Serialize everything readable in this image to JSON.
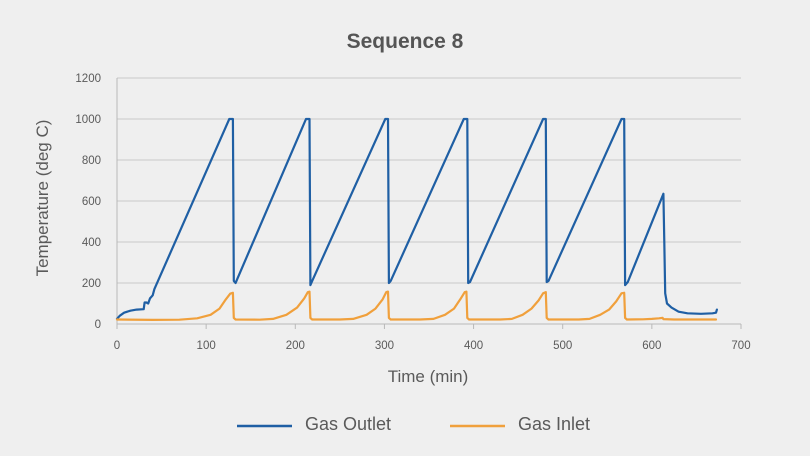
{
  "chart_data": {
    "type": "line",
    "title": "Sequence 8",
    "xlabel": "Time (min)",
    "ylabel": "Temperature (deg C)",
    "xlim": [
      0,
      700
    ],
    "ylim": [
      0,
      1200
    ],
    "xticks": [
      "0",
      "100",
      "200",
      "300",
      "400",
      "500",
      "600",
      "700"
    ],
    "yticks": [
      "0",
      "200",
      "400",
      "600",
      "800",
      "1000",
      "1200"
    ],
    "grid": "horizontal",
    "legend_position": "bottom",
    "series": [
      {
        "name": "Gas Outlet",
        "color": "#1f5fa4",
        "points": [
          [
            0,
            25
          ],
          [
            3,
            40
          ],
          [
            8,
            55
          ],
          [
            15,
            65
          ],
          [
            22,
            70
          ],
          [
            30,
            72
          ],
          [
            31,
            105
          ],
          [
            33,
            105
          ],
          [
            35,
            100
          ],
          [
            37,
            125
          ],
          [
            40,
            140
          ],
          [
            42,
            170
          ],
          [
            126,
            1000
          ],
          [
            128,
            1000
          ],
          [
            130,
            1000
          ],
          [
            131,
            210
          ],
          [
            133,
            200
          ],
          [
            135,
            220
          ],
          [
            212,
            1000
          ],
          [
            216,
            1000
          ],
          [
            217,
            190
          ],
          [
            219,
            210
          ],
          [
            301,
            1000
          ],
          [
            304,
            1000
          ],
          [
            305,
            200
          ],
          [
            307,
            210
          ],
          [
            389,
            1000
          ],
          [
            393,
            1000
          ],
          [
            394,
            200
          ],
          [
            396,
            205
          ],
          [
            478,
            1000
          ],
          [
            481,
            1000
          ],
          [
            482,
            205
          ],
          [
            484,
            210
          ],
          [
            566,
            1000
          ],
          [
            569,
            1000
          ],
          [
            570,
            190
          ],
          [
            573,
            205
          ],
          [
            613,
            635
          ],
          [
            614,
            400
          ],
          [
            615,
            150
          ],
          [
            617,
            100
          ],
          [
            622,
            80
          ],
          [
            630,
            60
          ],
          [
            640,
            52
          ],
          [
            655,
            50
          ],
          [
            668,
            52
          ],
          [
            672,
            55
          ],
          [
            673,
            70
          ]
        ]
      },
      {
        "name": "Gas Inlet",
        "color": "#f0a03c",
        "points": [
          [
            0,
            22
          ],
          [
            40,
            20
          ],
          [
            70,
            21
          ],
          [
            90,
            28
          ],
          [
            105,
            45
          ],
          [
            115,
            75
          ],
          [
            122,
            120
          ],
          [
            127,
            148
          ],
          [
            130,
            152
          ],
          [
            131,
            30
          ],
          [
            133,
            22
          ],
          [
            160,
            21
          ],
          [
            175,
            25
          ],
          [
            190,
            45
          ],
          [
            202,
            80
          ],
          [
            210,
            125
          ],
          [
            214,
            155
          ],
          [
            216,
            158
          ],
          [
            217,
            30
          ],
          [
            219,
            22
          ],
          [
            250,
            22
          ],
          [
            265,
            25
          ],
          [
            280,
            45
          ],
          [
            290,
            75
          ],
          [
            298,
            120
          ],
          [
            302,
            155
          ],
          [
            304,
            158
          ],
          [
            305,
            30
          ],
          [
            307,
            22
          ],
          [
            340,
            22
          ],
          [
            355,
            25
          ],
          [
            368,
            45
          ],
          [
            378,
            75
          ],
          [
            385,
            120
          ],
          [
            390,
            155
          ],
          [
            392,
            158
          ],
          [
            393,
            30
          ],
          [
            395,
            22
          ],
          [
            430,
            22
          ],
          [
            443,
            25
          ],
          [
            455,
            45
          ],
          [
            465,
            75
          ],
          [
            473,
            115
          ],
          [
            478,
            150
          ],
          [
            481,
            155
          ],
          [
            482,
            30
          ],
          [
            484,
            22
          ],
          [
            518,
            22
          ],
          [
            530,
            25
          ],
          [
            542,
            45
          ],
          [
            552,
            70
          ],
          [
            560,
            110
          ],
          [
            566,
            150
          ],
          [
            569,
            152
          ],
          [
            570,
            30
          ],
          [
            572,
            22
          ],
          [
            590,
            23
          ],
          [
            600,
            25
          ],
          [
            608,
            28
          ],
          [
            612,
            30
          ],
          [
            613,
            24
          ],
          [
            625,
            22
          ],
          [
            650,
            22
          ],
          [
            672,
            22
          ]
        ]
      }
    ]
  }
}
